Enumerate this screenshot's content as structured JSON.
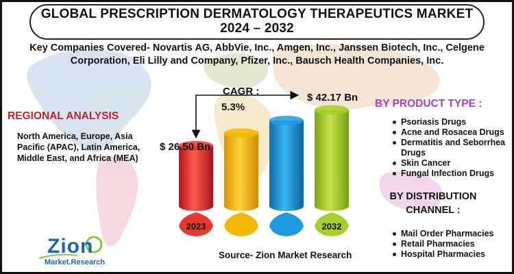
{
  "title": {
    "line1": "GLOBAL PRESCRIPTION DERMATOLOGY THERAPEUTICS MARKET",
    "line2": "2024 – 2032"
  },
  "companies_text": "Key Companies Covered- Novartis AG, AbbVie, Inc., Amgen, Inc., Janssen Biotech, Inc., Celgene Corporation, Eli Lilly and Company, Pfizer, Inc., Bausch Health Companies, Inc.",
  "regional": {
    "heading": "REGIONAL ANALYSIS",
    "text": "North America, Europe, Asia Pacific (APAC), Latin America, Middle East, and Africa (MEA)"
  },
  "product_type": {
    "heading": "BY PRODUCT TYPE :",
    "items": [
      "Psoriasis Drugs",
      "Acne and Rosacea Drugs",
      "Dermatitis and Seborrhea Drugs",
      "Skin Cancer",
      "Fungal Infection Drugs"
    ]
  },
  "distribution": {
    "heading_line1": "BY DISTRIBUTION",
    "heading_line2": "CHANNEL :",
    "items": [
      "Mail Order Pharmacies",
      "Retail Pharmacies",
      "Hospital Pharmacies"
    ]
  },
  "source": "Source- Zion Market Research",
  "logo": {
    "word": "Zion",
    "sub": "Market.Research"
  },
  "chart_data": {
    "type": "bar",
    "title": "",
    "xlabel": "",
    "ylabel": "",
    "categories": [
      "2023",
      "",
      "",
      "2032"
    ],
    "values": [
      26.5,
      32.0,
      37.5,
      42.17
    ],
    "value_labels": [
      "$ 26.50 Bn",
      "",
      "",
      "$ 42.17 Bn"
    ],
    "ylim": [
      0,
      45
    ],
    "cagr_label": "CAGR :",
    "cagr_value": "5.3%",
    "colors": [
      "#e8372f",
      "#f5b800",
      "#1e9be0",
      "#a6cf2a"
    ]
  }
}
